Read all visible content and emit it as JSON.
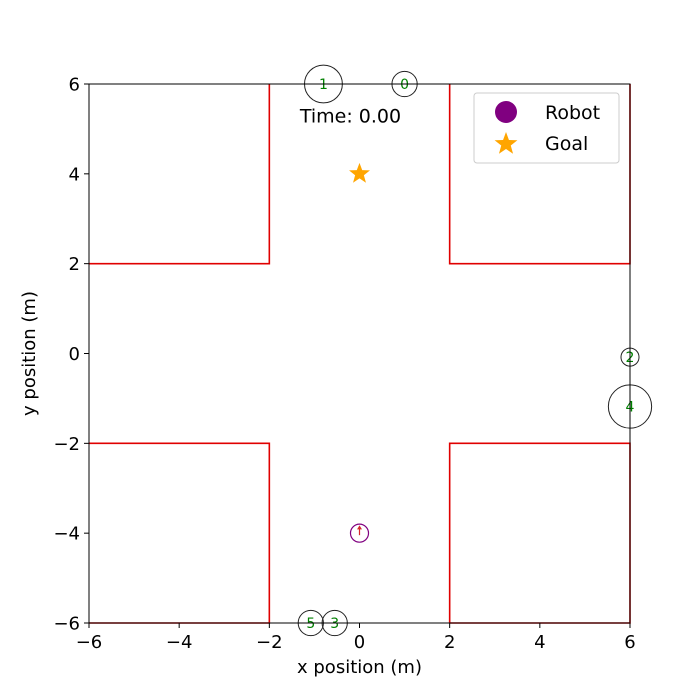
{
  "chart_data": {
    "type": "scatter",
    "xlabel": "x position (m)",
    "ylabel": "y position (m)",
    "xlim": [
      -6,
      6
    ],
    "ylim": [
      -6,
      6
    ],
    "xticks": [
      -6,
      -4,
      -2,
      0,
      2,
      4,
      6
    ],
    "yticks": [
      -6,
      -4,
      -2,
      0,
      2,
      4,
      6
    ],
    "tick_labels_x": [
      "−6",
      "−4",
      "−2",
      "0",
      "2",
      "4",
      "6"
    ],
    "tick_labels_y": [
      "−6",
      "−4",
      "−2",
      "0",
      "2",
      "4",
      "6"
    ],
    "grid": false,
    "annotation": "Time: 0.00",
    "walls_color": "#e00000",
    "walls": [
      [
        [
          -6,
          2
        ],
        [
          -2,
          2
        ],
        [
          -2,
          6
        ]
      ],
      [
        [
          2,
          6
        ],
        [
          2,
          2
        ],
        [
          6,
          2
        ],
        [
          6,
          6
        ]
      ],
      [
        [
          -6,
          -2
        ],
        [
          -2,
          -2
        ],
        [
          -2,
          -6
        ],
        [
          -6,
          -6
        ]
      ],
      [
        [
          2,
          -6
        ],
        [
          2,
          -2
        ],
        [
          6,
          -2
        ],
        [
          6,
          -6
        ],
        [
          2,
          -6
        ]
      ]
    ],
    "robot": {
      "x": 0.0,
      "y": -4.0,
      "radius": 0.2,
      "color": "#800080",
      "heading_deg": 90
    },
    "goal": {
      "x": 0.0,
      "y": 4.0,
      "color": "#ffa500"
    },
    "humans": [
      {
        "id": "0",
        "x": 1.0,
        "y": 6.0,
        "radius": 0.28
      },
      {
        "id": "1",
        "x": -0.8,
        "y": 6.0,
        "radius": 0.42
      },
      {
        "id": "2",
        "x": 6.0,
        "y": -0.08,
        "radius": 0.2
      },
      {
        "id": "3",
        "x": -0.55,
        "y": -6.0,
        "radius": 0.28
      },
      {
        "id": "4",
        "x": 6.0,
        "y": -1.18,
        "radius": 0.48
      },
      {
        "id": "5",
        "x": -1.08,
        "y": -6.0,
        "radius": 0.28
      }
    ],
    "legend": {
      "placement": "top-right",
      "entries": [
        {
          "label": "Robot",
          "marker": "circle",
          "color": "#800080"
        },
        {
          "label": "Goal",
          "marker": "star",
          "color": "#ffa500"
        }
      ]
    }
  }
}
